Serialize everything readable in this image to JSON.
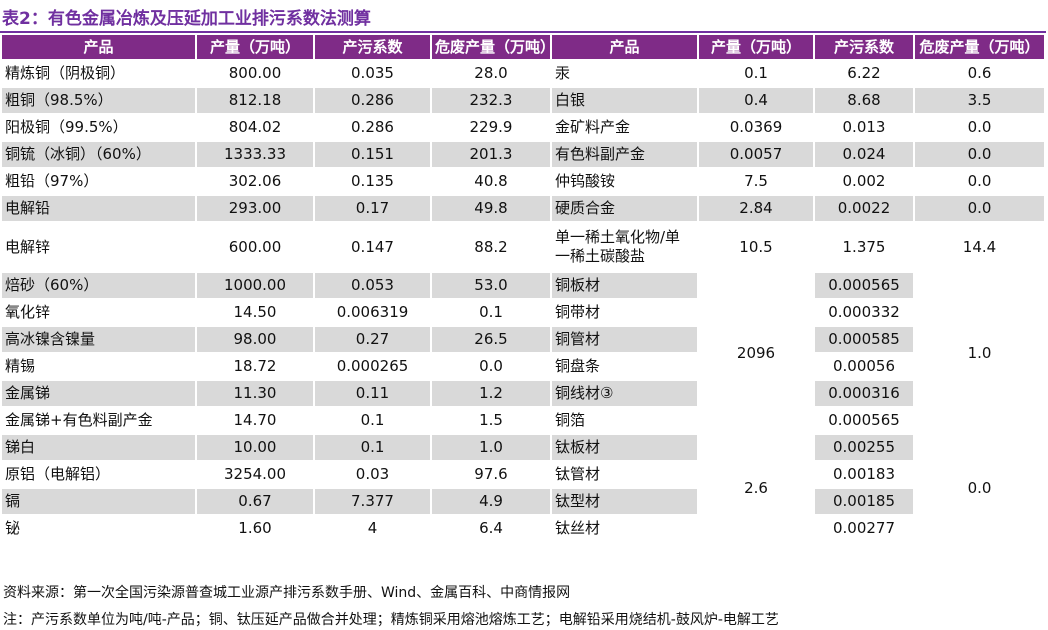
{
  "header": {
    "title": "表2：有色金属冶炼及压延加工业排污系数法测算"
  },
  "table": {
    "columns": [
      "产品",
      "产量（万吨）",
      "产污系数",
      "危废产量（万吨）",
      "产品",
      "产量（万吨）",
      "产污系数",
      "危废产量（万吨）"
    ],
    "left_rows": [
      [
        "精炼铜（阴极铜）",
        "800.00",
        "0.035",
        "28.0"
      ],
      [
        "粗铜（98.5%）",
        "812.18",
        "0.286",
        "232.3"
      ],
      [
        "阳极铜（99.5%）",
        "804.02",
        "0.286",
        "229.9"
      ],
      [
        "铜锍（冰铜）（60%）",
        "1333.33",
        "0.151",
        "201.3"
      ],
      [
        "粗铅（97%）",
        "302.06",
        "0.135",
        "40.8"
      ],
      [
        "电解铅",
        "293.00",
        "0.17",
        "49.8"
      ],
      [
        "电解锌",
        "600.00",
        "0.147",
        "88.2"
      ],
      [
        "焙砂（60%）",
        "1000.00",
        "0.053",
        "53.0"
      ],
      [
        "氧化锌",
        "14.50",
        "0.006319",
        "0.1"
      ],
      [
        "高冰镍含镍量",
        "98.00",
        "0.27",
        "26.5"
      ],
      [
        "精锡",
        "18.72",
        "0.000265",
        "0.0"
      ],
      [
        "金属锑",
        "11.30",
        "0.11",
        "1.2"
      ],
      [
        "金属锑+有色料副产金",
        "14.70",
        "0.1",
        "1.5"
      ],
      [
        "锑白",
        "10.00",
        "0.1",
        "1.0"
      ],
      [
        "原铝（电解铝）",
        "3254.00",
        "0.03",
        "97.6"
      ],
      [
        "镉",
        "0.67",
        "7.377",
        "4.9"
      ],
      [
        "铋",
        "1.60",
        "4",
        "6.4"
      ]
    ],
    "right_rows": [
      [
        "汞",
        "0.1",
        "6.22",
        "0.6"
      ],
      [
        "白银",
        "0.4",
        "8.68",
        "3.5"
      ],
      [
        "金矿料产金",
        "0.0369",
        "0.013",
        "0.0"
      ],
      [
        "有色料副产金",
        "0.0057",
        "0.024",
        "0.0"
      ],
      [
        "仲钨酸铵",
        "7.5",
        "0.002",
        "0.0"
      ],
      [
        "硬质合金",
        "2.84",
        "0.0022",
        "0.0"
      ],
      [
        "单一稀土氧化物/单一稀土碳酸盐",
        "10.5",
        "1.375",
        "14.4"
      ]
    ],
    "right_groups": [
      {
        "output": "2096",
        "waste": "1.0",
        "items": [
          {
            "product": "铜板材",
            "coefficient": "0.000565"
          },
          {
            "product": "铜带材",
            "coefficient": "0.000332"
          },
          {
            "product": "铜管材",
            "coefficient": "0.000585"
          },
          {
            "product": "铜盘条",
            "coefficient": "0.00056"
          },
          {
            "product": "铜线材③",
            "coefficient": "0.000316"
          },
          {
            "product": "铜箔",
            "coefficient": "0.000565"
          }
        ]
      },
      {
        "output": "2.6",
        "waste": "0.0",
        "items": [
          {
            "product": "钛板材",
            "coefficient": "0.00255"
          },
          {
            "product": "钛管材",
            "coefficient": "0.00183"
          },
          {
            "product": "钛型材",
            "coefficient": "0.00185"
          },
          {
            "product": "钛丝材",
            "coefficient": "0.00277"
          }
        ]
      }
    ]
  },
  "footer": {
    "source": "资料来源：第一次全国污染源普查城工业源产排污系数手册、Wind、金属百科、中商情报网",
    "note": "注：产污系数单位为吨/吨-产品；铜、钛压延产品做合并处理；精炼铜采用熔池熔炼工艺；电解铅采用烧结机-鼓风炉-电解工艺"
  }
}
